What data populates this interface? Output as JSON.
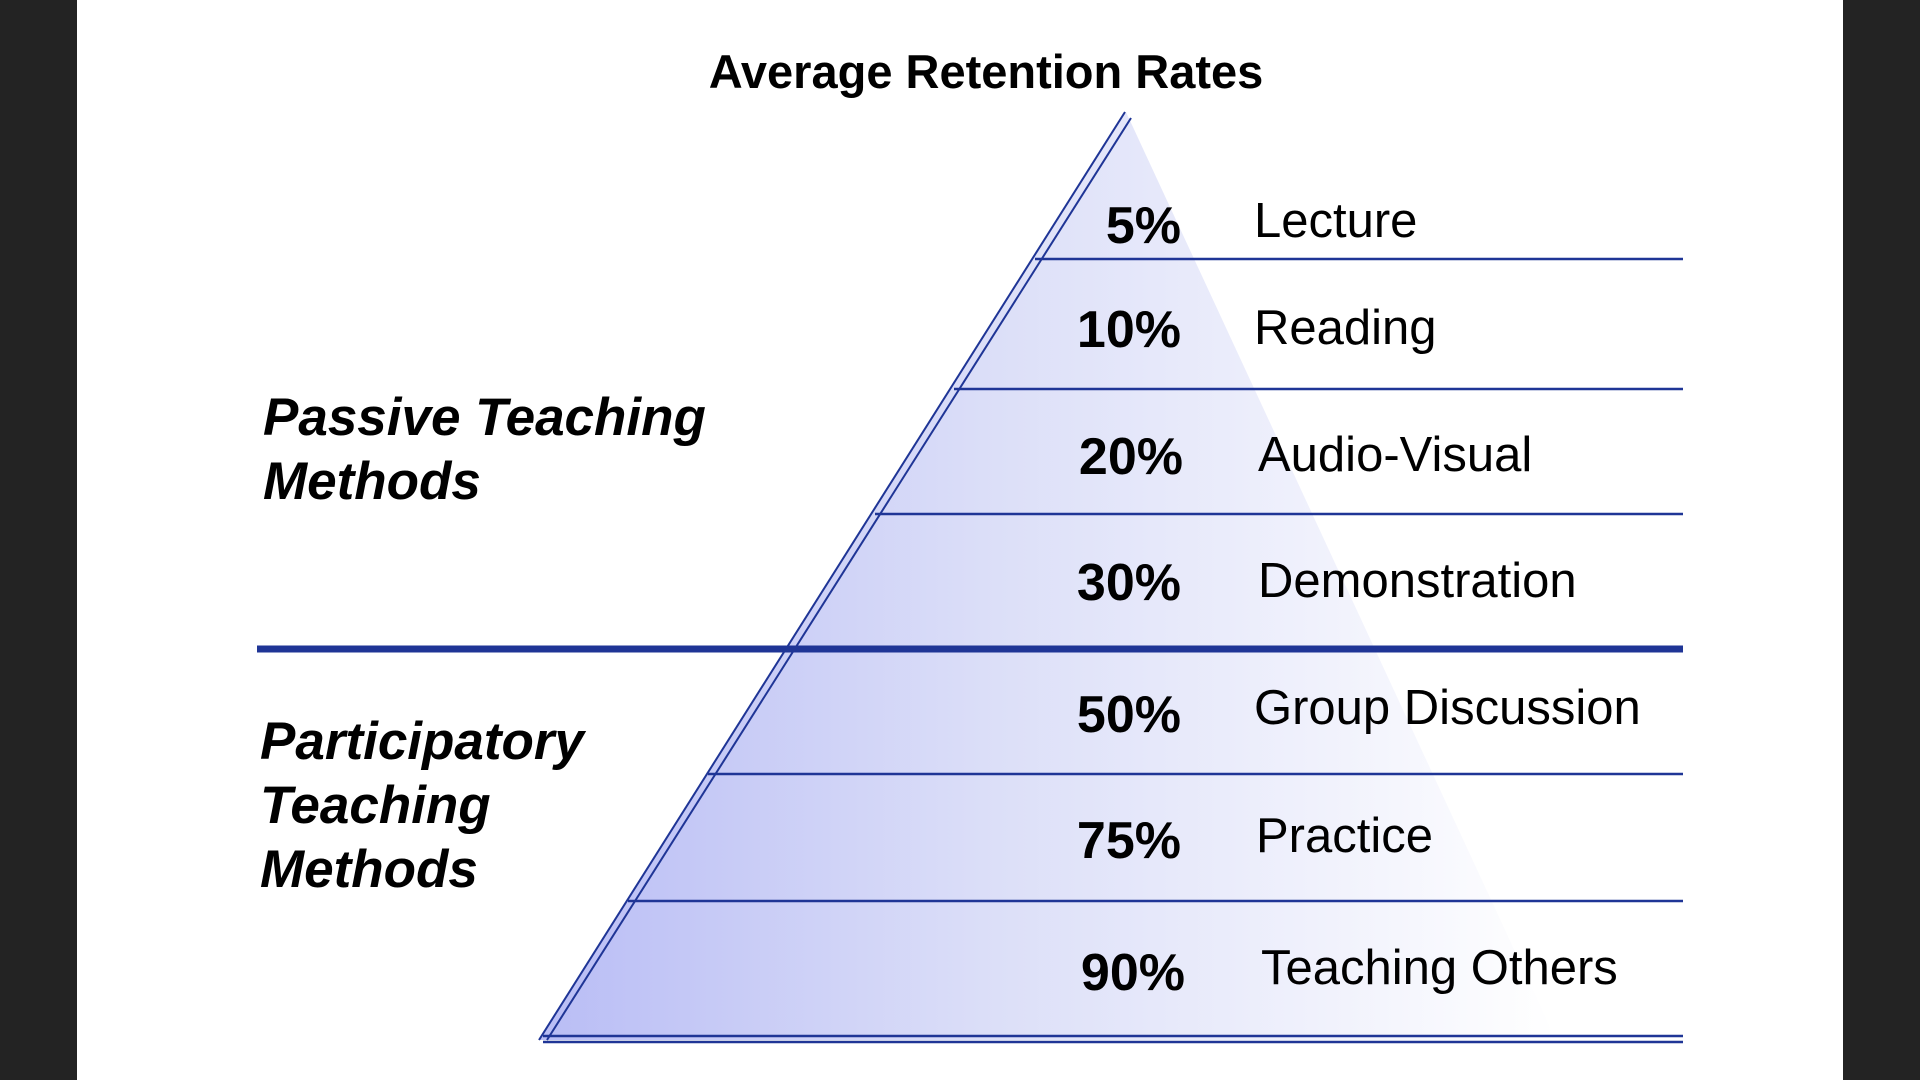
{
  "title": "Average Retention Rates",
  "groups": [
    {
      "name": "passive",
      "lines": [
        "Passive Teaching",
        "Methods"
      ]
    },
    {
      "name": "participatory",
      "lines": [
        "Participatory",
        "Teaching",
        "Methods"
      ]
    }
  ],
  "levels": [
    {
      "percent": "5%",
      "label": "Lecture"
    },
    {
      "percent": "10%",
      "label": "Reading"
    },
    {
      "percent": "20%",
      "label": "Audio-Visual"
    },
    {
      "percent": "30%",
      "label": "Demonstration"
    },
    {
      "percent": "50%",
      "label": "Group Discussion"
    },
    {
      "percent": "75%",
      "label": "Practice"
    },
    {
      "percent": "90%",
      "label": "Teaching Others"
    }
  ],
  "colors": {
    "fill_dark": "#aeb4f0",
    "fill_light": "#ffffff",
    "lines": "#1f3596",
    "background": "#232323"
  }
}
